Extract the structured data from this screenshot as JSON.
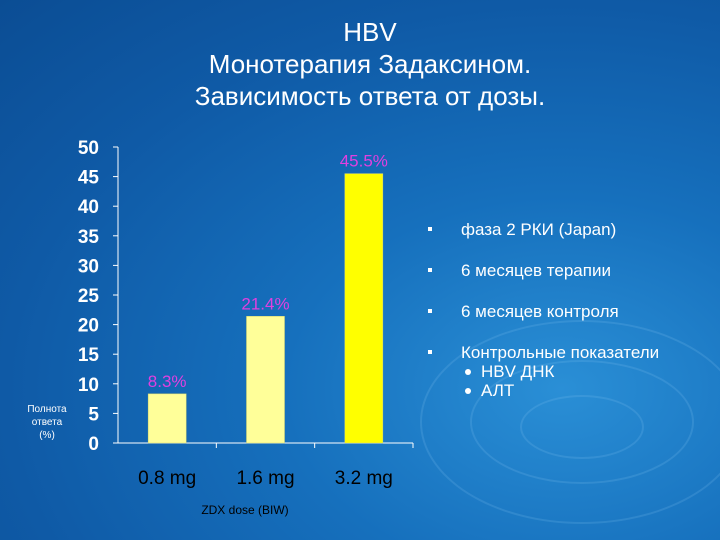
{
  "title_lines": [
    "HBV",
    "Монотерапия Задаксином.",
    "Зависимость ответа от дозы."
  ],
  "chart_data": {
    "type": "bar",
    "categories": [
      "0.8 mg",
      "1.6 mg",
      "3.2 mg"
    ],
    "values": [
      8.3,
      21.4,
      45.5
    ],
    "data_labels": [
      "8.3%",
      "21.4%",
      "45.5%"
    ],
    "ylim": [
      0,
      50
    ],
    "yticks": [
      0,
      5,
      10,
      15,
      20,
      25,
      30,
      35,
      40,
      45,
      50
    ],
    "ylabel": "Полнота ответа (%)",
    "ylabel_lines": [
      "Полнота",
      "ответа",
      "(%)"
    ],
    "xlabel": "ZDX dose (BIW)",
    "bar_colors": [
      "#ffff99",
      "#ffff99",
      "#ffff00"
    ],
    "data_label_color": "#e040e0",
    "grid": false
  },
  "bullets": [
    {
      "text": "фаза 2  РКИ (Japan)"
    },
    {
      "text": "6 месяцев терапии"
    },
    {
      "text": "6 месяцев контроля"
    },
    {
      "text": "Контрольные показатели",
      "sub": [
        "HBV ДНК",
        "АЛТ"
      ]
    }
  ]
}
